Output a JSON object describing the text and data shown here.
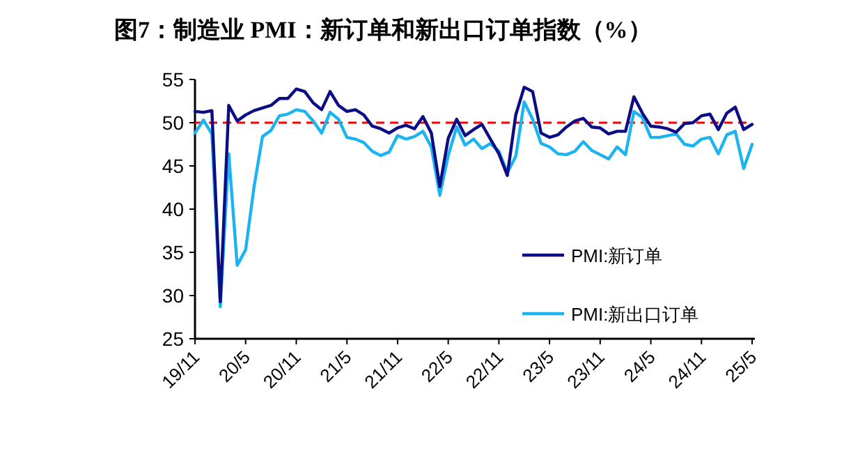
{
  "chart_data": {
    "type": "line",
    "title": "图7：制造业 PMI：新订单和新出口订单指数（%）",
    "categories": [
      "19/11",
      null,
      null,
      null,
      null,
      null,
      "20/5",
      null,
      null,
      null,
      null,
      null,
      "20/11",
      null,
      null,
      null,
      null,
      null,
      "21/5",
      null,
      null,
      null,
      null,
      null,
      "21/11",
      null,
      null,
      null,
      null,
      null,
      "22/5",
      null,
      null,
      null,
      null,
      null,
      "22/11",
      null,
      null,
      null,
      null,
      null,
      "23/5",
      null,
      null,
      null,
      null,
      null,
      "23/11",
      null,
      null,
      null,
      null,
      null,
      "24/5",
      null,
      null,
      null,
      null,
      null,
      "24/11",
      null,
      null,
      null,
      null,
      null,
      "25/5"
    ],
    "series": [
      {
        "name": "PMI:新订单",
        "color": "#0c0c84",
        "values": [
          51.3,
          51.2,
          51.4,
          29.3,
          52.0,
          50.2,
          50.9,
          51.4,
          51.7,
          52.0,
          52.8,
          52.8,
          53.9,
          53.6,
          52.3,
          51.5,
          53.6,
          52.0,
          51.3,
          51.5,
          50.9,
          49.6,
          49.3,
          48.8,
          49.4,
          49.7,
          49.3,
          50.7,
          48.8,
          42.6,
          48.2,
          50.4,
          48.5,
          49.2,
          49.8,
          48.1,
          46.4,
          43.9,
          50.9,
          54.1,
          53.6,
          48.8,
          48.3,
          48.6,
          49.5,
          50.2,
          50.5,
          49.5,
          49.4,
          48.7,
          49.0,
          49.0,
          53.0,
          51.1,
          49.6,
          49.5,
          49.3,
          48.9,
          49.9,
          50.0,
          50.8,
          51.0,
          49.2,
          51.1,
          51.8,
          49.2,
          49.8
        ]
      },
      {
        "name": "PMI:新出口订单",
        "color": "#1cb4f0",
        "values": [
          48.8,
          50.3,
          48.7,
          28.7,
          46.4,
          33.5,
          35.3,
          42.6,
          48.4,
          49.1,
          50.8,
          51.0,
          51.5,
          51.3,
          50.2,
          48.8,
          51.2,
          50.4,
          48.3,
          48.1,
          47.7,
          46.7,
          46.2,
          46.6,
          48.5,
          48.1,
          48.4,
          49.0,
          47.2,
          41.6,
          46.2,
          49.5,
          47.4,
          48.1,
          47.0,
          47.6,
          46.7,
          44.2,
          46.1,
          52.4,
          50.4,
          47.6,
          47.2,
          46.4,
          46.3,
          46.7,
          47.8,
          46.8,
          46.3,
          45.8,
          47.2,
          46.3,
          51.3,
          50.6,
          48.3,
          48.3,
          48.5,
          48.7,
          47.5,
          47.3,
          48.1,
          48.3,
          46.4,
          48.6,
          49.0,
          44.7,
          47.5
        ]
      }
    ],
    "ylim": [
      25,
      55
    ],
    "yticks": [
      25,
      30,
      35,
      40,
      45,
      50,
      55
    ],
    "ref_lines": [
      {
        "axis": "y",
        "value": 50,
        "color": "#ff0000",
        "line_style": "dashed"
      }
    ],
    "grid": false,
    "legend": "bottom right",
    "marker": "none",
    "line_style": "solid"
  }
}
